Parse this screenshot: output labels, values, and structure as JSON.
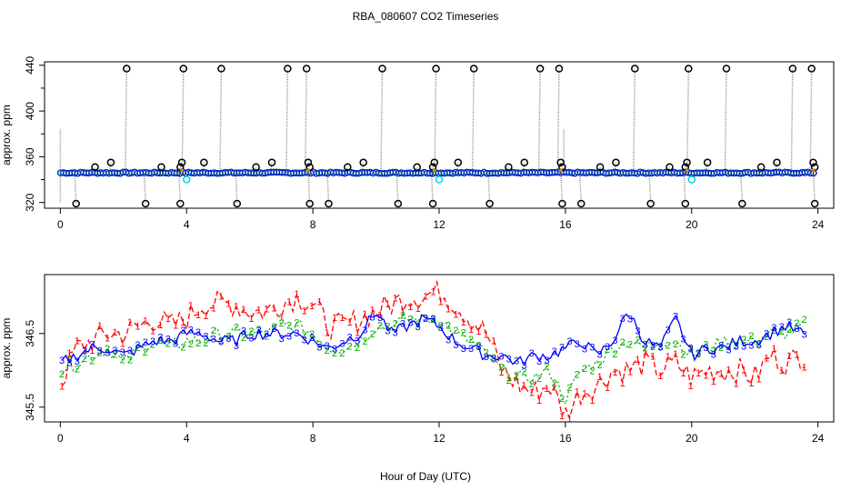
{
  "title": "RBA_080607  CO2 Timeseries",
  "xlabel": "Hour of Day (UTC)",
  "colors": {
    "black": "#000000",
    "blue": "#0000ff",
    "cyan": "#00d8e0",
    "red": "#ff0000",
    "green": "#00b000",
    "grey": "#999999"
  },
  "chart_data": [
    {
      "type": "scatter",
      "panel": "top",
      "title": "RBA_080607  CO2 Timeseries",
      "xlabel": "",
      "ylabel": "approx. ppm",
      "xlim": [
        -0.5,
        24.5
      ],
      "ylim": [
        315,
        443
      ],
      "xticks": [
        "0",
        "4",
        "8",
        "12",
        "16",
        "20",
        "24"
      ],
      "yticks": [
        "320",
        "360",
        "400",
        "440"
      ],
      "baseline_ppm": 346,
      "calibration_cycle_hours": 4,
      "calibration_points": [
        {
          "x": 0.5,
          "y": 319
        },
        {
          "x": 1.1,
          "y": 351
        },
        {
          "x": 1.6,
          "y": 355
        },
        {
          "x": 2.1,
          "y": 437
        },
        {
          "x": 2.7,
          "y": 319
        },
        {
          "x": 3.2,
          "y": 351
        },
        {
          "x": 3.8,
          "y": 319
        },
        {
          "x": 3.9,
          "y": 437
        },
        {
          "x": 3.85,
          "y": 355
        },
        {
          "x": 3.8,
          "y": 351
        },
        {
          "x": 4.55,
          "y": 355
        },
        {
          "x": 5.1,
          "y": 437
        },
        {
          "x": 5.6,
          "y": 319
        },
        {
          "x": 6.2,
          "y": 351
        },
        {
          "x": 6.7,
          "y": 355
        },
        {
          "x": 7.2,
          "y": 437
        },
        {
          "x": 7.8,
          "y": 437
        },
        {
          "x": 7.85,
          "y": 355
        },
        {
          "x": 7.9,
          "y": 351
        },
        {
          "x": 7.9,
          "y": 319
        },
        {
          "x": 8.5,
          "y": 319
        },
        {
          "x": 9.1,
          "y": 351
        },
        {
          "x": 9.6,
          "y": 355
        },
        {
          "x": 10.2,
          "y": 437
        },
        {
          "x": 10.7,
          "y": 319
        },
        {
          "x": 11.3,
          "y": 351
        },
        {
          "x": 11.8,
          "y": 319
        },
        {
          "x": 11.9,
          "y": 437
        },
        {
          "x": 11.85,
          "y": 355
        },
        {
          "x": 11.8,
          "y": 351
        },
        {
          "x": 12.6,
          "y": 355
        },
        {
          "x": 13.1,
          "y": 437
        },
        {
          "x": 13.6,
          "y": 319
        },
        {
          "x": 14.2,
          "y": 351
        },
        {
          "x": 14.7,
          "y": 355
        },
        {
          "x": 15.2,
          "y": 437
        },
        {
          "x": 15.8,
          "y": 437
        },
        {
          "x": 15.85,
          "y": 355
        },
        {
          "x": 15.9,
          "y": 351
        },
        {
          "x": 15.9,
          "y": 319
        },
        {
          "x": 16.5,
          "y": 319
        },
        {
          "x": 17.1,
          "y": 351
        },
        {
          "x": 17.6,
          "y": 355
        },
        {
          "x": 18.2,
          "y": 437
        },
        {
          "x": 18.7,
          "y": 319
        },
        {
          "x": 19.3,
          "y": 351
        },
        {
          "x": 19.8,
          "y": 319
        },
        {
          "x": 19.9,
          "y": 437
        },
        {
          "x": 19.85,
          "y": 355
        },
        {
          "x": 19.8,
          "y": 351
        },
        {
          "x": 20.5,
          "y": 355
        },
        {
          "x": 21.1,
          "y": 437
        },
        {
          "x": 21.6,
          "y": 319
        },
        {
          "x": 22.2,
          "y": 351
        },
        {
          "x": 22.7,
          "y": 355
        },
        {
          "x": 23.2,
          "y": 437
        },
        {
          "x": 23.8,
          "y": 437
        },
        {
          "x": 23.85,
          "y": 355
        },
        {
          "x": 23.9,
          "y": 351
        },
        {
          "x": 23.9,
          "y": 319
        }
      ],
      "cyan_points": [
        {
          "x": 4.0,
          "y": 340
        },
        {
          "x": 12.0,
          "y": 340
        },
        {
          "x": 20.0,
          "y": 340
        }
      ]
    },
    {
      "type": "line",
      "panel": "bottom",
      "xlabel": "Hour of Day (UTC)",
      "ylabel": "approx. ppm",
      "xlim": [
        -0.5,
        24.5
      ],
      "ylim": [
        345.3,
        347.3
      ],
      "xticks": [
        "0",
        "4",
        "8",
        "12",
        "16",
        "20",
        "24"
      ],
      "yticks": [
        "345.5",
        "346.5"
      ],
      "x": [
        0,
        0.5,
        1,
        1.5,
        2,
        2.5,
        3,
        3.5,
        4,
        4.5,
        5,
        5.5,
        6,
        6.5,
        7,
        7.5,
        8,
        8.5,
        9,
        9.5,
        10,
        10.5,
        11,
        11.5,
        12,
        12.5,
        13,
        13.5,
        14,
        14.5,
        15,
        15.5,
        16,
        16.5,
        17,
        17.5,
        18,
        18.5,
        19,
        19.5,
        20,
        20.5,
        21,
        21.5,
        22,
        22.5,
        23,
        23.5
      ],
      "series": [
        {
          "name": "1",
          "color": "#ff0000",
          "values": [
            345.8,
            346.3,
            346.4,
            346.5,
            346.5,
            346.6,
            346.7,
            346.6,
            346.7,
            346.9,
            346.9,
            346.9,
            346.8,
            346.8,
            346.9,
            347.0,
            346.9,
            346.6,
            346.6,
            346.7,
            346.8,
            346.9,
            347.0,
            347.0,
            347.1,
            346.9,
            346.7,
            346.5,
            346.0,
            345.8,
            345.7,
            345.8,
            345.4,
            345.7,
            345.8,
            346.0,
            346.0,
            346.1,
            346.0,
            346.1,
            345.9,
            346.0,
            346.0,
            346.0,
            345.9,
            346.2,
            346.1,
            346.2
          ]
        },
        {
          "name": "2",
          "color": "#00b000",
          "values": [
            346.0,
            346.1,
            346.2,
            346.3,
            346.1,
            346.3,
            346.4,
            346.3,
            346.4,
            346.4,
            346.5,
            346.5,
            346.5,
            346.5,
            346.6,
            346.6,
            346.5,
            346.3,
            346.3,
            346.4,
            346.6,
            346.6,
            346.7,
            346.7,
            346.7,
            346.5,
            346.4,
            346.2,
            346.0,
            345.9,
            345.9,
            346.0,
            345.6,
            346.0,
            346.1,
            346.3,
            346.4,
            346.3,
            346.4,
            346.4,
            346.2,
            346.3,
            346.4,
            346.4,
            346.4,
            346.5,
            346.5,
            346.6
          ]
        },
        {
          "name": "3",
          "color": "#0000ff",
          "values": [
            346.1,
            346.2,
            346.3,
            346.3,
            346.2,
            346.3,
            346.4,
            346.4,
            346.5,
            346.5,
            346.4,
            346.4,
            346.5,
            346.5,
            346.5,
            346.5,
            346.4,
            346.3,
            346.4,
            346.5,
            346.8,
            346.5,
            346.6,
            346.7,
            346.6,
            346.4,
            346.3,
            346.2,
            346.2,
            346.1,
            346.2,
            346.2,
            346.3,
            346.4,
            346.2,
            346.4,
            346.8,
            346.4,
            346.3,
            346.7,
            346.2,
            346.3,
            346.3,
            346.4,
            346.4,
            346.5,
            346.6,
            346.5
          ]
        }
      ]
    }
  ]
}
